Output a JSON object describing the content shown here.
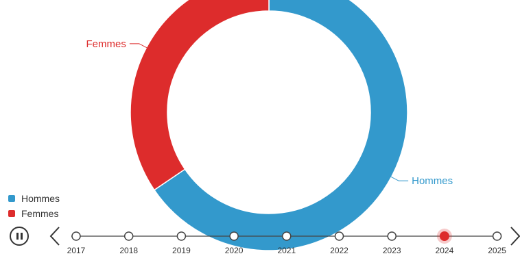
{
  "chart_data": {
    "type": "pie",
    "donut": true,
    "slices": [
      {
        "label": "Hommes",
        "value": 65.5,
        "color": "#3399cc"
      },
      {
        "label": "Femmes",
        "value": 34.5,
        "color": "#dd2c2c"
      }
    ],
    "legend": [
      {
        "label": "Hommes",
        "color": "#3399cc"
      },
      {
        "label": "Femmes",
        "color": "#dd2c2c"
      }
    ],
    "legend_position": "bottom-left"
  },
  "timeline": {
    "years": [
      "2017",
      "2018",
      "2019",
      "2020",
      "2021",
      "2022",
      "2023",
      "2024",
      "2025"
    ],
    "selected": "2024",
    "active_color": "#dd2c2c",
    "play_state": "pause-icon"
  }
}
